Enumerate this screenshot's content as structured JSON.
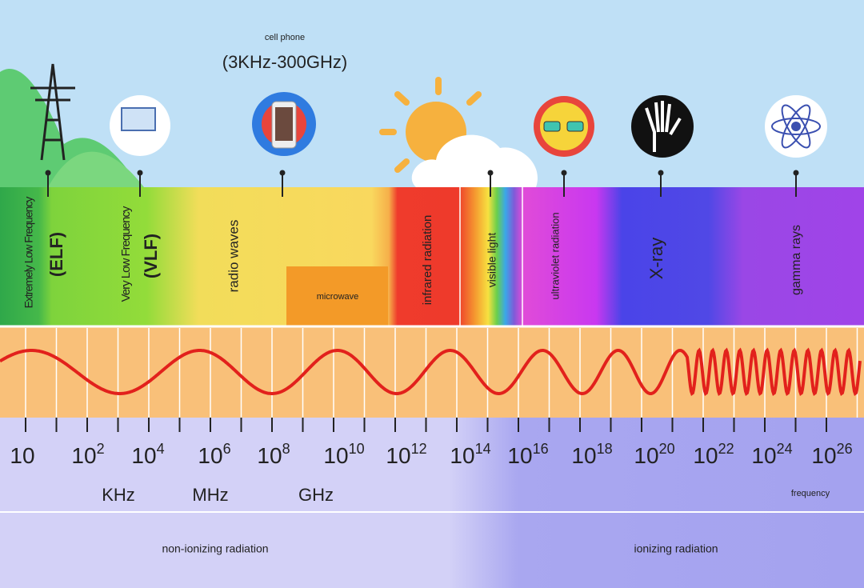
{
  "header": {
    "caption": "cell phone",
    "range": "(3KHz-300GHz)"
  },
  "bands": [
    {
      "label": "Extremely Low Frequency",
      "abbr": "(ELF)"
    },
    {
      "label": "Very Low Frequency",
      "abbr": "(VLF)"
    },
    {
      "label": "radio waves"
    },
    {
      "label": "microwave"
    },
    {
      "label": "infrared radiation"
    },
    {
      "label": "visible light"
    },
    {
      "label": "ultraviolet radiation"
    },
    {
      "label": "X-ray"
    },
    {
      "label": "gamma rays"
    }
  ],
  "scale": {
    "ticks": [
      {
        "base": "10"
      },
      {
        "base": "10",
        "exp": "2"
      },
      {
        "base": "10",
        "exp": "4"
      },
      {
        "base": "10",
        "exp": "6"
      },
      {
        "base": "10",
        "exp": "8"
      },
      {
        "base": "10",
        "exp": "10"
      },
      {
        "base": "10",
        "exp": "12"
      },
      {
        "base": "10",
        "exp": "14"
      },
      {
        "base": "10",
        "exp": "16"
      },
      {
        "base": "10",
        "exp": "18"
      },
      {
        "base": "10",
        "exp": "20"
      },
      {
        "base": "10",
        "exp": "22"
      },
      {
        "base": "10",
        "exp": "24"
      },
      {
        "base": "10",
        "exp": "26"
      }
    ],
    "units": [
      "KHz",
      "MHz",
      "GHz"
    ],
    "axis_label": "frequency"
  },
  "regions": [
    "non-ionizing radiation",
    "ionizing radiation"
  ]
}
